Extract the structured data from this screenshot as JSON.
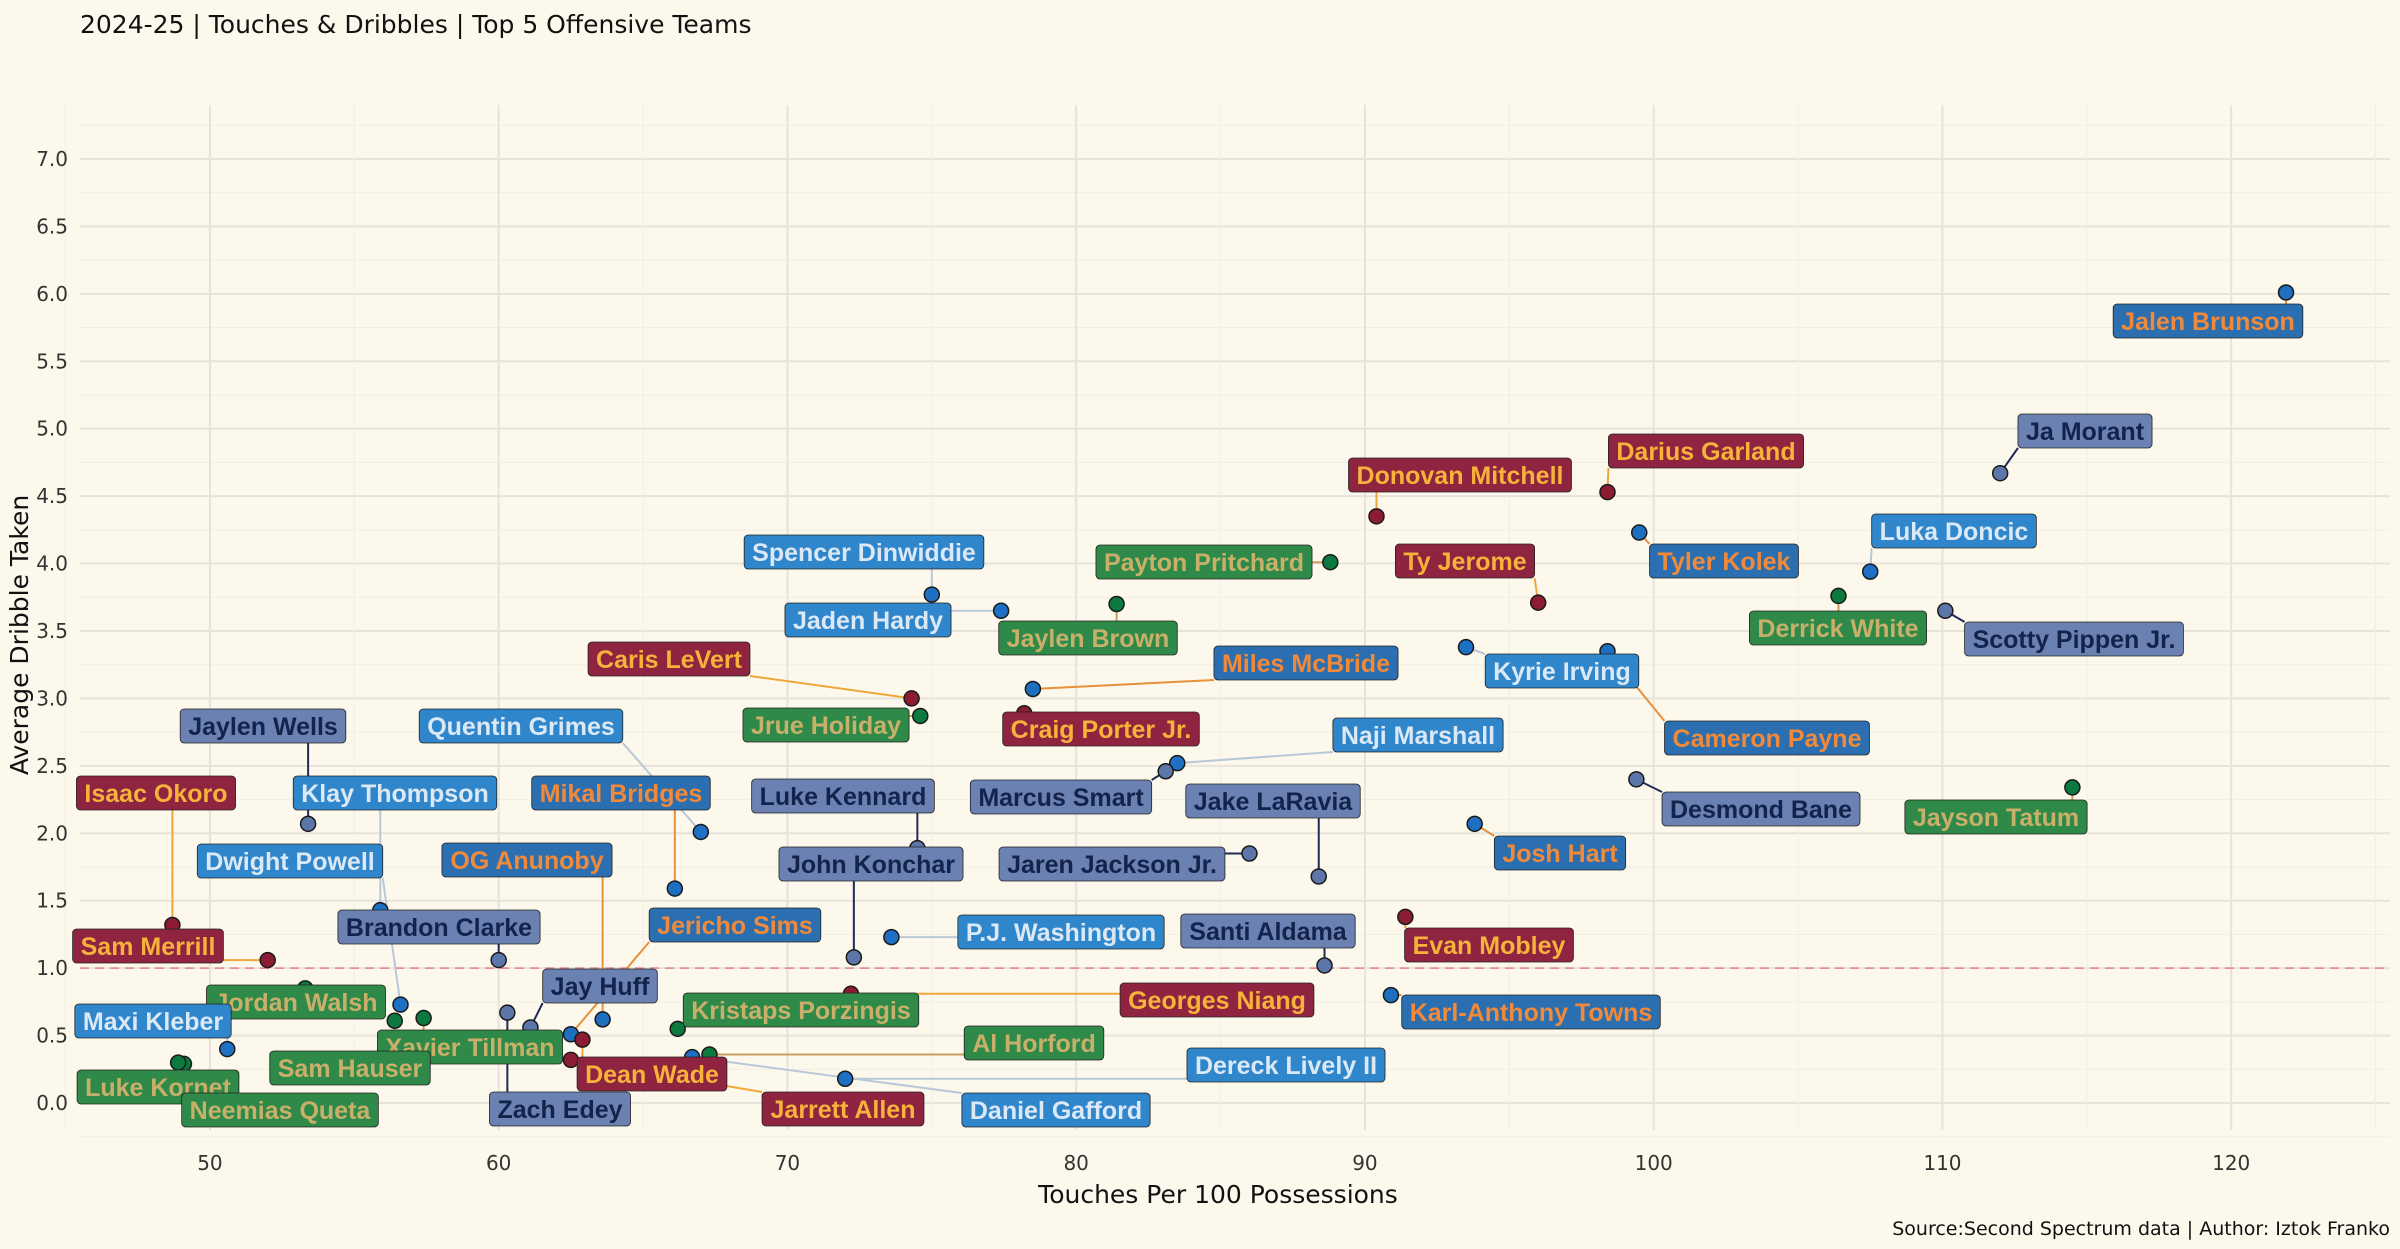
{
  "chart_data": {
    "type": "scatter",
    "title": "2024-25 | Touches & Dribbles | Top 5 Offensive Teams",
    "caption": "Source:Second Spectrum data | Author: Iztok Franko",
    "xlabel": "Touches Per 100 Possessions",
    "ylabel": "Average Dribble Taken",
    "xlim": [
      45.5,
      125.5
    ],
    "ylim": [
      -0.2,
      7.4
    ],
    "xticks": [
      50,
      60,
      70,
      80,
      90,
      100,
      110,
      120
    ],
    "yticks": [
      "0.0",
      "0.5",
      "1.0",
      "1.5",
      "2.0",
      "2.5",
      "3.0",
      "3.5",
      "4.0",
      "4.5",
      "5.0",
      "5.5",
      "6.0",
      "6.5",
      "7.0"
    ],
    "reference_line": {
      "y": 1.0,
      "color": "#e8828a",
      "style": "dashed"
    },
    "grid": true,
    "legend": "none",
    "colors": {
      "CLE": {
        "point": "#8b1c34",
        "label_bg": "#8e2440",
        "label_text": "#f6b23a"
      },
      "NYK": {
        "point": "#1f6fc0",
        "label_bg": "#2b6fb0",
        "label_text": "#f08a3a"
      },
      "BOS": {
        "point": "#0c7a3e",
        "label_bg": "#2f8a4a",
        "label_text": "#c9b06a"
      },
      "MEM": {
        "point": "#5d76a9",
        "label_bg": "#6b81b2",
        "label_text": "#13234b"
      },
      "DAL": {
        "point": "#1d70c4",
        "label_bg": "#2f86cb",
        "label_text": "#dbe8f6"
      }
    },
    "points": [
      {
        "name": "Jalen Brunson",
        "team": "NYK",
        "x": 121.9,
        "y": 6.01
      },
      {
        "name": "Ja Morant",
        "team": "MEM",
        "x": 112.0,
        "y": 4.67
      },
      {
        "name": "Darius Garland",
        "team": "CLE",
        "x": 98.4,
        "y": 4.53
      },
      {
        "name": "Donovan Mitchell",
        "team": "CLE",
        "x": 90.4,
        "y": 4.35
      },
      {
        "name": "Tyler Kolek",
        "team": "NYK",
        "x": 99.5,
        "y": 4.23
      },
      {
        "name": "Luka Doncic",
        "team": "DAL",
        "x": 107.5,
        "y": 3.94
      },
      {
        "name": "Payton Pritchard",
        "team": "BOS",
        "x": 88.8,
        "y": 4.01
      },
      {
        "name": "Ty Jerome",
        "team": "CLE",
        "x": 96.0,
        "y": 3.71
      },
      {
        "name": "Spencer Dinwiddie",
        "team": "DAL",
        "x": 75.0,
        "y": 3.77
      },
      {
        "name": "Jaden Hardy",
        "team": "DAL",
        "x": 77.4,
        "y": 3.65
      },
      {
        "name": "Jaylen Brown",
        "team": "BOS",
        "x": 81.4,
        "y": 3.7
      },
      {
        "name": "Derrick White",
        "team": "BOS",
        "x": 106.4,
        "y": 3.76
      },
      {
        "name": "Scotty Pippen Jr.",
        "team": "MEM",
        "x": 110.1,
        "y": 3.65
      },
      {
        "name": "Kyrie Irving",
        "team": "DAL",
        "x": 93.5,
        "y": 3.38
      },
      {
        "name": "Cameron Payne",
        "team": "NYK",
        "x": 98.4,
        "y": 3.35
      },
      {
        "name": "Miles McBride",
        "team": "NYK",
        "x": 78.5,
        "y": 3.07
      },
      {
        "name": "Caris LeVert",
        "team": "CLE",
        "x": 74.3,
        "y": 3.0
      },
      {
        "name": "Jrue Holiday",
        "team": "BOS",
        "x": 74.6,
        "y": 2.87
      },
      {
        "name": "Craig Porter Jr.",
        "team": "CLE",
        "x": 78.2,
        "y": 2.89
      },
      {
        "name": "Naji Marshall",
        "team": "DAL",
        "x": 83.5,
        "y": 2.52
      },
      {
        "name": "Marcus Smart",
        "team": "MEM",
        "x": 83.1,
        "y": 2.46
      },
      {
        "name": "Jayson Tatum",
        "team": "BOS",
        "x": 114.5,
        "y": 2.34
      },
      {
        "name": "Desmond Bane",
        "team": "MEM",
        "x": 99.4,
        "y": 2.4
      },
      {
        "name": "Jaylen Wells",
        "team": "MEM",
        "x": 53.4,
        "y": 2.07
      },
      {
        "name": "Quentin Grimes",
        "team": "DAL",
        "x": 67.0,
        "y": 2.01
      },
      {
        "name": "Josh Hart",
        "team": "NYK",
        "x": 93.8,
        "y": 2.07
      },
      {
        "name": "Luke Kennard",
        "team": "MEM",
        "x": 74.5,
        "y": 1.89
      },
      {
        "name": "Jake LaRavia",
        "team": "MEM",
        "x": 88.4,
        "y": 1.68
      },
      {
        "name": "Mikal Bridges",
        "team": "NYK",
        "x": 66.1,
        "y": 1.59
      },
      {
        "name": "Klay Thompson",
        "team": "DAL",
        "x": 55.9,
        "y": 1.43
      },
      {
        "name": "Isaac Okoro",
        "team": "CLE",
        "x": 48.7,
        "y": 1.32
      },
      {
        "name": "Evan Mobley",
        "team": "CLE",
        "x": 91.4,
        "y": 1.38
      },
      {
        "name": "P.J. Washington",
        "team": "DAL",
        "x": 73.6,
        "y": 1.23
      },
      {
        "name": "John Konchar",
        "team": "MEM",
        "x": 72.3,
        "y": 1.08
      },
      {
        "name": "Brandon Clarke",
        "team": "MEM",
        "x": 60.0,
        "y": 1.06
      },
      {
        "name": "Sam Merrill",
        "team": "CLE",
        "x": 52.0,
        "y": 1.06
      },
      {
        "name": "Santi Aldama",
        "team": "MEM",
        "x": 88.6,
        "y": 1.02
      },
      {
        "name": "Georges Niang",
        "team": "CLE",
        "x": 72.2,
        "y": 0.81
      },
      {
        "name": "Karl-Anthony Towns",
        "team": "NYK",
        "x": 90.9,
        "y": 0.8
      },
      {
        "name": "Jordan Walsh",
        "team": "BOS",
        "x": 53.3,
        "y": 0.85
      },
      {
        "name": "Dwight Powell",
        "team": "DAL",
        "x": 56.6,
        "y": 0.73
      },
      {
        "name": "Zach Edey",
        "team": "MEM",
        "x": 60.3,
        "y": 0.67
      },
      {
        "name": "OG Anunoby",
        "team": "NYK",
        "x": 63.6,
        "y": 0.62
      },
      {
        "name": "Jay Huff",
        "team": "MEM",
        "x": 61.1,
        "y": 0.56
      },
      {
        "name": "Jericho Sims",
        "team": "NYK",
        "x": 62.5,
        "y": 0.51
      },
      {
        "name": "Dean Wade",
        "team": "CLE",
        "x": 62.9,
        "y": 0.47
      },
      {
        "name": "Kristaps Porzingis",
        "team": "BOS",
        "x": 66.2,
        "y": 0.55
      },
      {
        "name": "Xavier Tillman",
        "team": "BOS",
        "x": 57.4,
        "y": 0.63
      },
      {
        "name": "Sam Hauser",
        "team": "BOS",
        "x": 56.4,
        "y": 0.61
      },
      {
        "name": "Maxi Kleber",
        "team": "DAL",
        "x": 50.6,
        "y": 0.4
      },
      {
        "name": "Al Horford",
        "team": "BOS",
        "x": 67.3,
        "y": 0.36
      },
      {
        "name": "Daniel Gafford",
        "team": "DAL",
        "x": 66.7,
        "y": 0.34
      },
      {
        "name": "Jarrett Allen",
        "team": "CLE",
        "x": 62.5,
        "y": 0.32
      },
      {
        "name": "Luke Kornet",
        "team": "BOS",
        "x": 49.1,
        "y": 0.29
      },
      {
        "name": "Neemias Queta",
        "team": "BOS",
        "x": 48.9,
        "y": 0.3
      },
      {
        "name": "Dereck Lively II",
        "team": "DAL",
        "x": 72.0,
        "y": 0.18
      },
      {
        "name": "Jaren Jackson Jr.",
        "team": "MEM",
        "x": 86.0,
        "y": 1.85
      }
    ]
  }
}
